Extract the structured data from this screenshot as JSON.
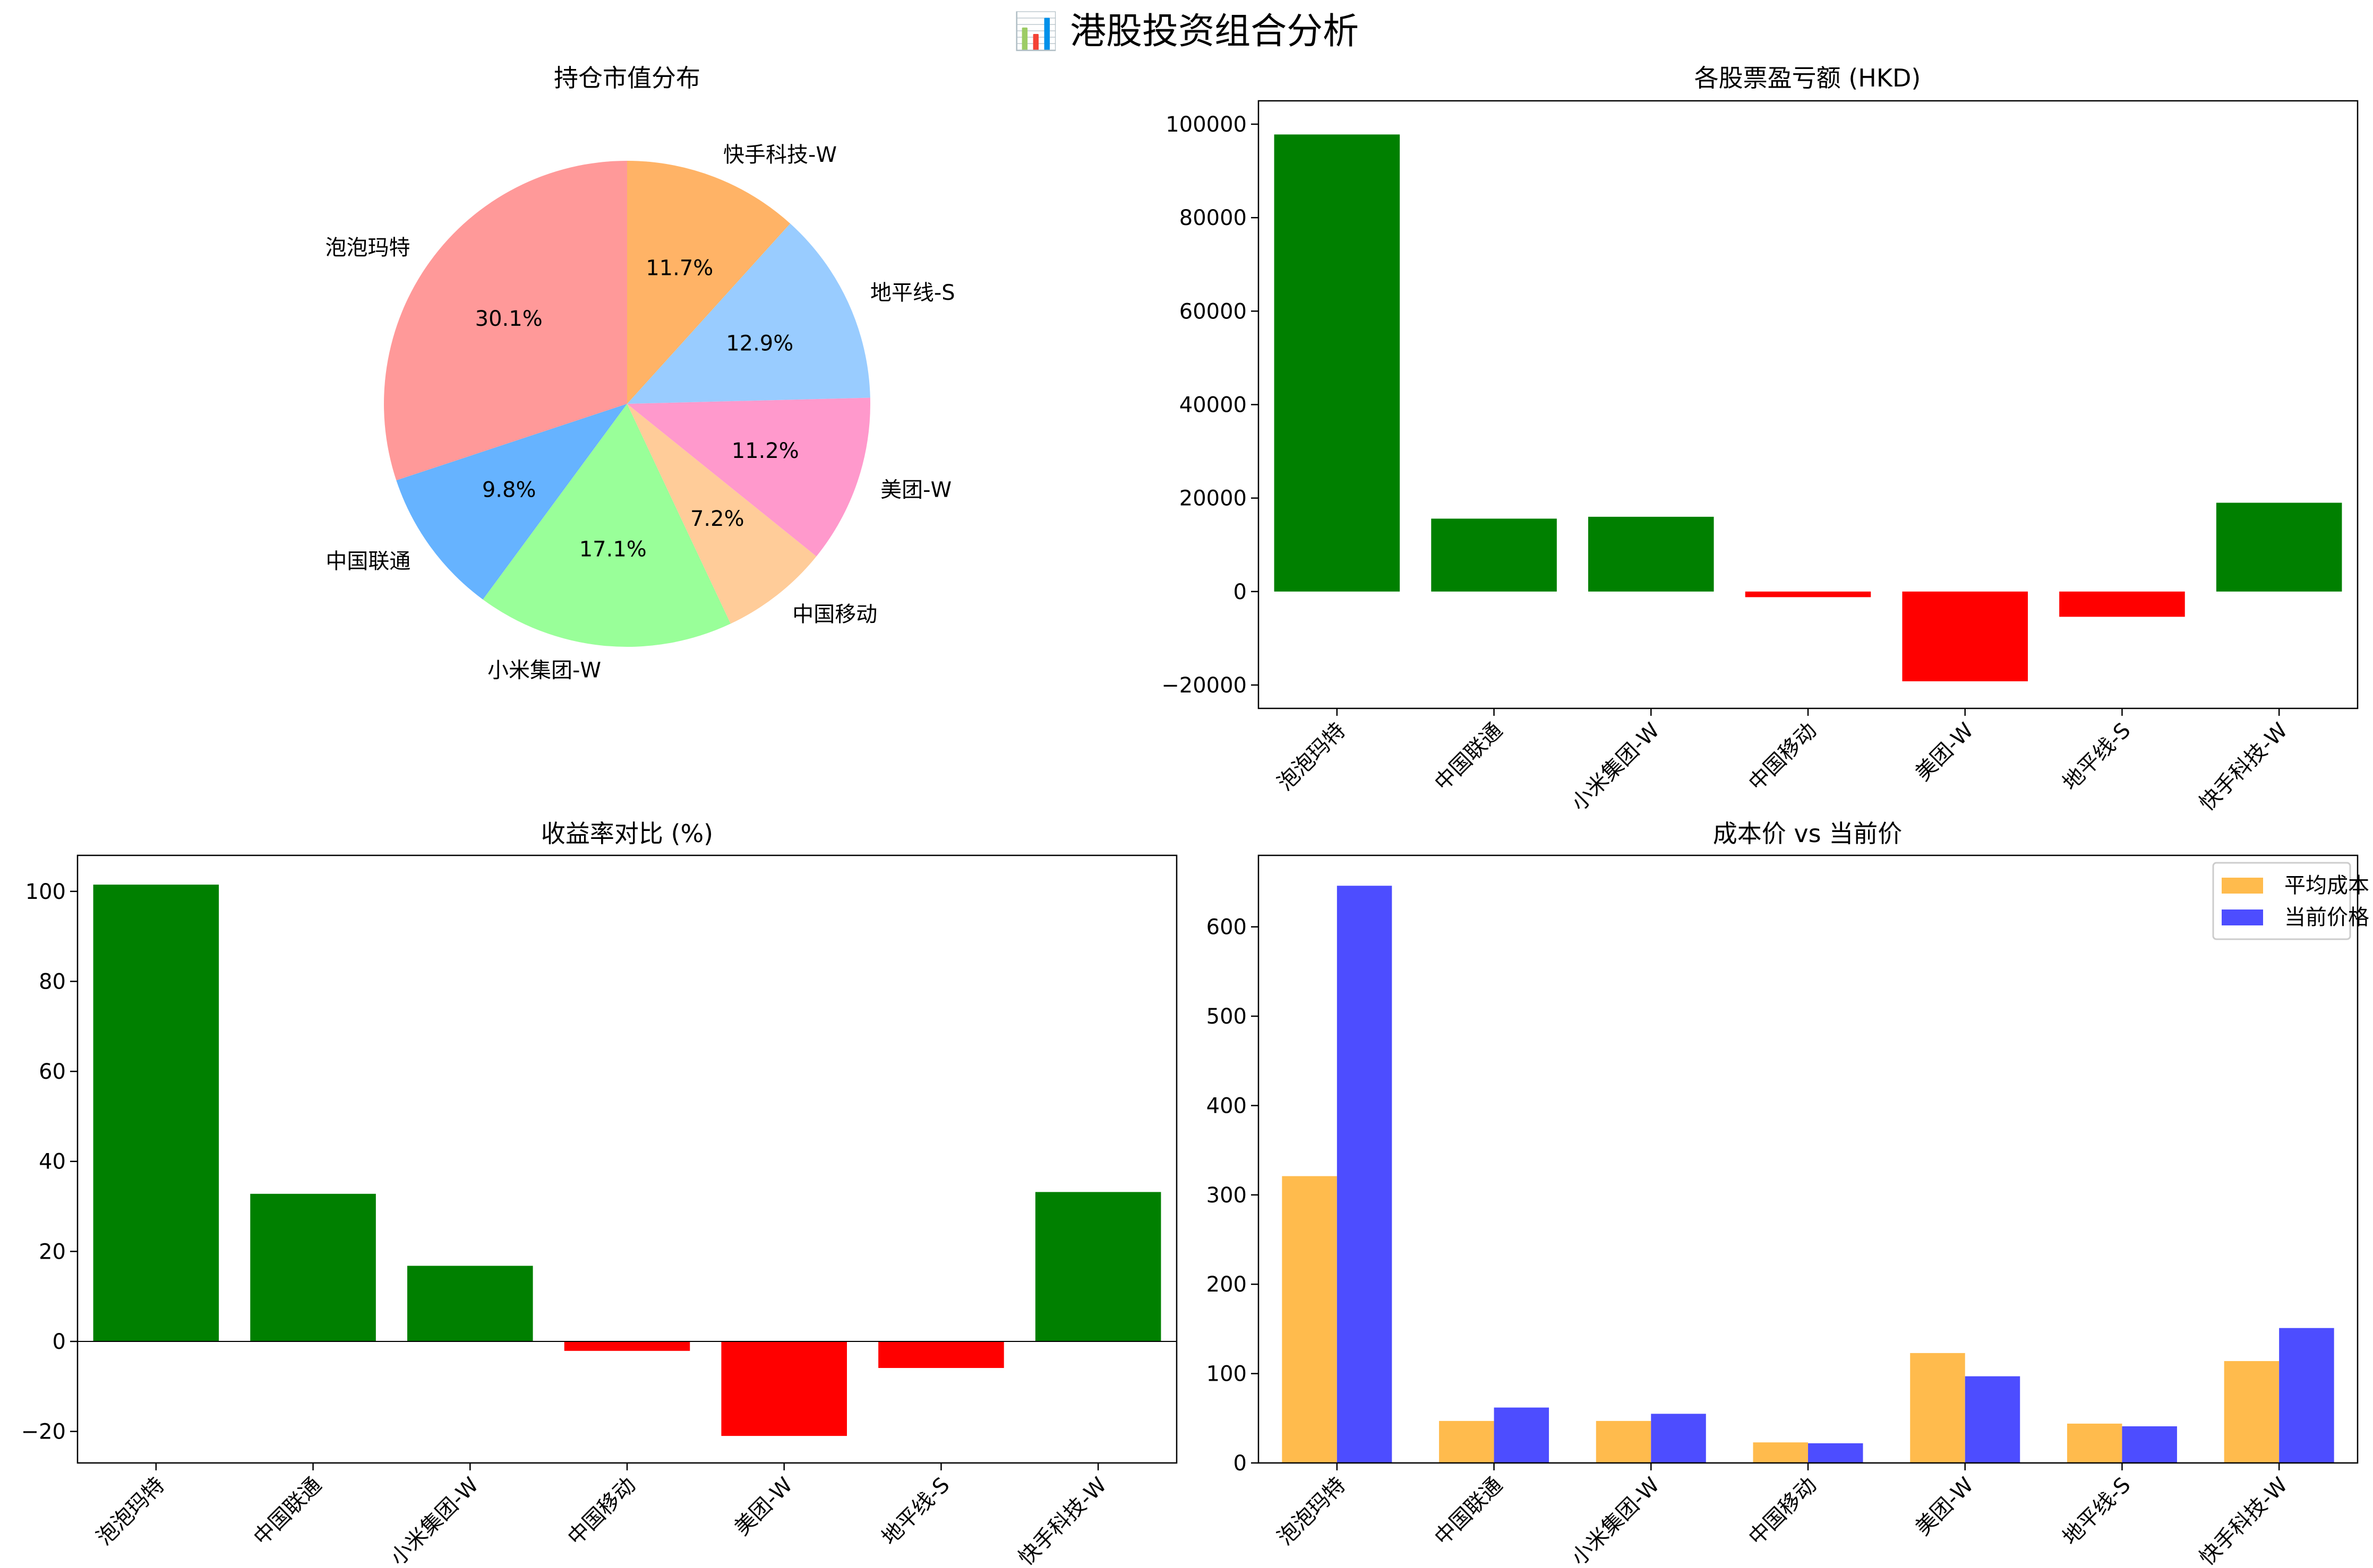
{
  "suptitle": "📊 港股投资组合分析",
  "chart_data": [
    {
      "type": "pie",
      "title": "持仓市值分布",
      "labels": [
        "泡泡玛特",
        "中国联通",
        "小米集团-W",
        "中国移动",
        "美团-W",
        "地平线-S",
        "快手科技-W"
      ],
      "values": [
        30.1,
        9.8,
        17.1,
        7.2,
        11.2,
        12.9,
        11.7
      ],
      "pct_labels": [
        "30.1%",
        "9.8%",
        "17.1%",
        "7.2%",
        "11.2%",
        "12.9%",
        "11.7%"
      ],
      "colors": [
        "#ff9999",
        "#66b3ff",
        "#99ff99",
        "#ffcc99",
        "#ff99cc",
        "#99ccff",
        "#ffb366"
      ],
      "startangle": 90
    },
    {
      "type": "bar",
      "title": "各股票盈亏额 (HKD)",
      "categories": [
        "泡泡玛特",
        "中国联通",
        "小米集团-W",
        "中国移动",
        "美团-W",
        "地平线-S",
        "快手科技-W"
      ],
      "values": [
        97800,
        15600,
        16000,
        -1200,
        -19200,
        -5400,
        19000
      ],
      "ylim": [
        -25000,
        105000
      ],
      "yticks": [
        -20000,
        0,
        20000,
        40000,
        60000,
        80000,
        100000
      ],
      "ytick_labels": [
        "−20000",
        "0",
        "20000",
        "40000",
        "60000",
        "80000",
        "100000"
      ],
      "positive_color": "#008000",
      "negative_color": "#ff0000"
    },
    {
      "type": "bar",
      "title": "收益率对比 (%)",
      "categories": [
        "泡泡玛特",
        "中国联通",
        "小米集团-W",
        "中国移动",
        "美团-W",
        "地平线-S",
        "快手科技-W"
      ],
      "values": [
        101.5,
        32.8,
        16.8,
        -2.1,
        -21.0,
        -5.9,
        33.2
      ],
      "ylim": [
        -27,
        108
      ],
      "yticks": [
        -20,
        0,
        20,
        40,
        60,
        80,
        100
      ],
      "ytick_labels": [
        "−20",
        "0",
        "20",
        "40",
        "60",
        "80",
        "100"
      ],
      "zero_line": true,
      "positive_color": "#008000",
      "negative_color": "#ff0000"
    },
    {
      "type": "bar",
      "title": "成本价 vs 当前价",
      "categories": [
        "泡泡玛特",
        "中国联通",
        "小米集团-W",
        "中国移动",
        "美团-W",
        "地平线-S",
        "快手科技-W"
      ],
      "series": [
        {
          "name": "平均成本",
          "values": [
            321,
            47,
            47,
            23,
            123,
            44,
            114
          ],
          "color": "#ffbb4d"
        },
        {
          "name": "当前价格",
          "values": [
            646,
            62,
            55,
            22,
            97,
            41,
            151
          ],
          "color": "#4d4dff"
        }
      ],
      "ylim": [
        0,
        680
      ],
      "yticks": [
        0,
        100,
        200,
        300,
        400,
        500,
        600
      ],
      "ytick_labels": [
        "0",
        "100",
        "200",
        "300",
        "400",
        "500",
        "600"
      ],
      "legend": "top-right"
    }
  ]
}
